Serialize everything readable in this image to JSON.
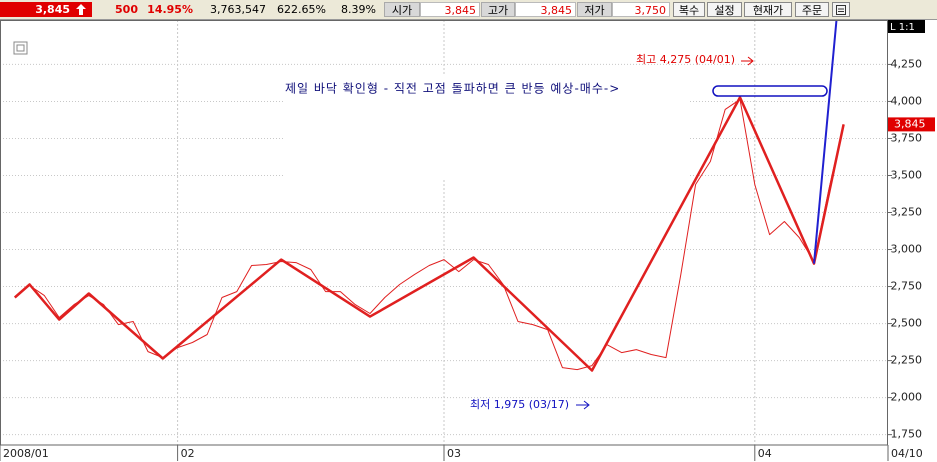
{
  "toolbar": {
    "price": "3,845",
    "change": "500",
    "change_pct": "14.95%",
    "volume": "3,763,547",
    "volume_pct": "622.65%",
    "turnover": "8.39%",
    "fields": [
      {
        "label": "시가",
        "value": "3,845"
      },
      {
        "label": "고가",
        "value": "3,845"
      },
      {
        "label": "저가",
        "value": "3,750"
      }
    ],
    "buttons": [
      "복수",
      "설정",
      "현재가",
      "주문"
    ]
  },
  "chart_data": {
    "type": "line",
    "annotations": [
      {
        "text": "최고 4,275 (04/01)"
      },
      {
        "text": "제일 바닥 확인형 - 직전 고점 돌파하면 큰 반등 예상-매수->"
      },
      {
        "text": "최저 1,975 (03/17)"
      }
    ],
    "scale_label": "L 1:1",
    "series": [
      {
        "color": "#e02020",
        "width": 1,
        "x": [
          0,
          1,
          2,
          3,
          4,
          5,
          6,
          7,
          8,
          9,
          10,
          11,
          12,
          13,
          14,
          15,
          16,
          17,
          18,
          19,
          20,
          21,
          22,
          23,
          24,
          25,
          26,
          27,
          28,
          29,
          30,
          31,
          32,
          33,
          34,
          35,
          36,
          37,
          38,
          39,
          40,
          41,
          42,
          43,
          44,
          45,
          46,
          47,
          48,
          49,
          50,
          51,
          52,
          53,
          54,
          55,
          56
        ],
        "values": [
          2676,
          2757,
          2689,
          2541,
          2628,
          2689,
          2628,
          2493,
          2514,
          2311,
          2270,
          2338,
          2372,
          2426,
          2676,
          2716,
          2892,
          2899,
          2919,
          2912,
          2865,
          2716,
          2716,
          2628,
          2568,
          2676,
          2764,
          2831,
          2892,
          2932,
          2851,
          2932,
          2899,
          2764,
          2514,
          2493,
          2459,
          2203,
          2189,
          2216,
          2358,
          2304,
          2324,
          2291,
          2270,
          2831,
          3439,
          3595,
          3946,
          4014,
          3439,
          3101,
          3189,
          3081,
          2919,
          3405,
          3845
        ]
      },
      {
        "color": "#e02020",
        "width": 2.5,
        "x": [
          0,
          1,
          3,
          5,
          10,
          18,
          24,
          31,
          39,
          49,
          54,
          56
        ],
        "values": [
          2676,
          2764,
          2527,
          2703,
          2264,
          2932,
          2547,
          2946,
          2183,
          4027,
          2905,
          3845
        ]
      },
      {
        "color": "#2020d0",
        "width": 2,
        "x": [
          54,
          56
        ],
        "values": [
          2905,
          5070
        ]
      }
    ],
    "price_marker": {
      "value": 3845,
      "label": "3,845"
    },
    "xlim": [
      -1,
      59
    ],
    "xticks": [
      {
        "value": -1,
        "label": "2008/01"
      },
      {
        "value": 11,
        "label": "02"
      },
      {
        "value": 29,
        "label": "03"
      },
      {
        "value": 50,
        "label": "04"
      },
      {
        "value": 59,
        "label": "04/10"
      }
    ],
    "ylim": [
      1680,
      4550
    ],
    "yticks": [
      {
        "value": 4250,
        "label": "4,250"
      },
      {
        "value": 4000,
        "label": "4,000"
      },
      {
        "value": 3750,
        "label": "3,750"
      },
      {
        "value": 3500,
        "label": "3,500"
      },
      {
        "value": 3250,
        "label": "3,250"
      },
      {
        "value": 3000,
        "label": "3,000"
      },
      {
        "value": 2750,
        "label": "2,750"
      },
      {
        "value": 2500,
        "label": "2,500"
      },
      {
        "value": 2250,
        "label": "2,250"
      },
      {
        "value": 2000,
        "label": "2,000"
      },
      {
        "value": 1750,
        "label": "1,750"
      }
    ],
    "grid": true
  }
}
